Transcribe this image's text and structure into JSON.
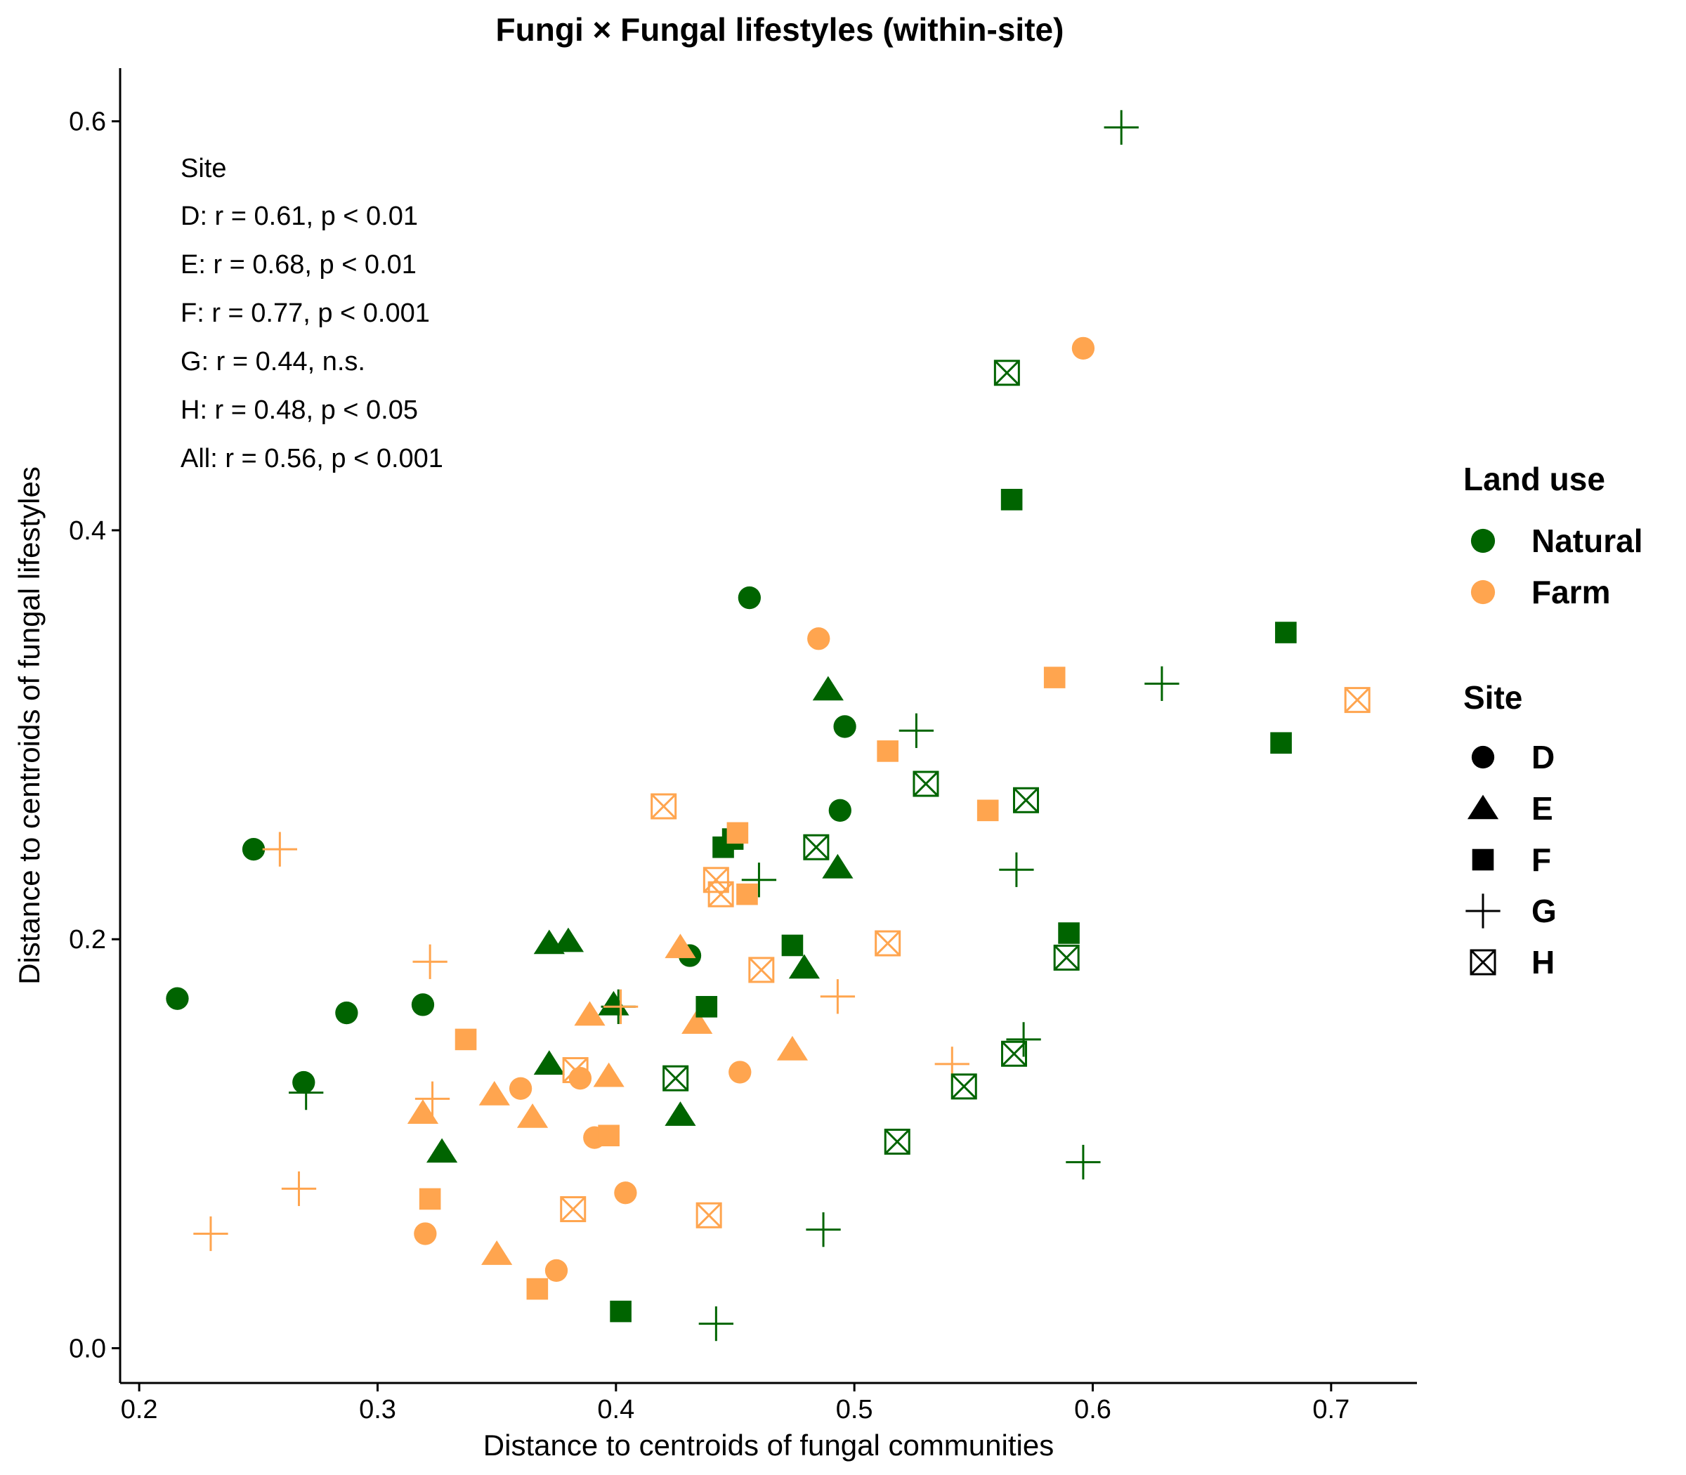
{
  "chart_data": {
    "type": "scatter",
    "title": "Fungi × Fungal lifestyles (within-site)",
    "xlabel": "Distance to centroids of fungal communities",
    "ylabel": "Distance to centroids of fungal lifestyles",
    "xlim": [
      0.192,
      0.736
    ],
    "ylim": [
      -0.017,
      0.626
    ],
    "xticks": [
      0.2,
      0.3,
      0.4,
      0.5,
      0.6,
      0.7
    ],
    "yticks": [
      0.0,
      0.2,
      0.4,
      0.6
    ],
    "xtick_labels": [
      "0.2",
      "0.3",
      "0.4",
      "0.5",
      "0.6",
      "0.7"
    ],
    "ytick_labels": [
      "0.0",
      "0.2",
      "0.4",
      "0.6"
    ],
    "grid": false,
    "annotation": [
      "Site",
      "D: r = 0.61, p < 0.01",
      "E: r = 0.68, p < 0.01",
      "F: r = 0.77, p < 0.001",
      "G: r = 0.44, n.s.",
      "H: r = 0.48, p < 0.05",
      "All: r = 0.56, p < 0.001"
    ],
    "legend_position": "right",
    "legends": {
      "land_use": {
        "title": "Land use",
        "items": [
          {
            "key": "Natural",
            "label": "Natural",
            "color": "#006400"
          },
          {
            "key": "Farm",
            "label": "Farm",
            "color": "#FFA54F"
          }
        ]
      },
      "site": {
        "title": "Site",
        "items": [
          {
            "key": "D",
            "label": "D",
            "shape": "circle"
          },
          {
            "key": "E",
            "label": "E",
            "shape": "triangle"
          },
          {
            "key": "F",
            "label": "F",
            "shape": "square"
          },
          {
            "key": "G",
            "label": "G",
            "shape": "plus"
          },
          {
            "key": "H",
            "label": "H",
            "shape": "boxed-x"
          }
        ]
      }
    },
    "series": [
      {
        "land_use": "Natural",
        "site": "D",
        "points": [
          [
            0.456,
            0.367
          ],
          [
            0.248,
            0.244
          ],
          [
            0.216,
            0.171
          ],
          [
            0.287,
            0.164
          ],
          [
            0.319,
            0.168
          ],
          [
            0.269,
            0.13
          ],
          [
            0.431,
            0.192
          ],
          [
            0.494,
            0.263
          ],
          [
            0.496,
            0.304
          ]
        ]
      },
      {
        "land_use": "Farm",
        "site": "D",
        "points": [
          [
            0.596,
            0.489
          ],
          [
            0.485,
            0.347
          ],
          [
            0.36,
            0.127
          ],
          [
            0.385,
            0.132
          ],
          [
            0.391,
            0.103
          ],
          [
            0.452,
            0.135
          ],
          [
            0.404,
            0.076
          ],
          [
            0.32,
            0.056
          ],
          [
            0.375,
            0.038
          ]
        ]
      },
      {
        "land_use": "Natural",
        "site": "E",
        "points": [
          [
            0.489,
            0.322
          ],
          [
            0.493,
            0.235
          ],
          [
            0.372,
            0.198
          ],
          [
            0.38,
            0.199
          ],
          [
            0.399,
            0.168
          ],
          [
            0.479,
            0.186
          ],
          [
            0.372,
            0.139
          ],
          [
            0.327,
            0.096
          ],
          [
            0.427,
            0.114
          ]
        ]
      },
      {
        "land_use": "Farm",
        "site": "E",
        "points": [
          [
            0.427,
            0.196
          ],
          [
            0.389,
            0.163
          ],
          [
            0.434,
            0.159
          ],
          [
            0.474,
            0.146
          ],
          [
            0.397,
            0.133
          ],
          [
            0.349,
            0.124
          ],
          [
            0.319,
            0.115
          ],
          [
            0.365,
            0.113
          ],
          [
            0.35,
            0.046
          ]
        ]
      },
      {
        "land_use": "Natural",
        "site": "F",
        "points": [
          [
            0.566,
            0.415
          ],
          [
            0.681,
            0.35
          ],
          [
            0.679,
            0.296
          ],
          [
            0.445,
            0.245
          ],
          [
            0.449,
            0.249
          ],
          [
            0.474,
            0.197
          ],
          [
            0.59,
            0.203
          ],
          [
            0.438,
            0.167
          ],
          [
            0.402,
            0.018
          ]
        ]
      },
      {
        "land_use": "Farm",
        "site": "F",
        "points": [
          [
            0.584,
            0.328
          ],
          [
            0.514,
            0.292
          ],
          [
            0.556,
            0.263
          ],
          [
            0.451,
            0.252
          ],
          [
            0.455,
            0.222
          ],
          [
            0.337,
            0.151
          ],
          [
            0.397,
            0.104
          ],
          [
            0.322,
            0.073
          ],
          [
            0.367,
            0.029
          ]
        ]
      },
      {
        "land_use": "Natural",
        "site": "G",
        "points": [
          [
            0.612,
            0.597
          ],
          [
            0.629,
            0.325
          ],
          [
            0.526,
            0.302
          ],
          [
            0.568,
            0.234
          ],
          [
            0.46,
            0.229
          ],
          [
            0.401,
            0.167
          ],
          [
            0.571,
            0.151
          ],
          [
            0.27,
            0.125
          ],
          [
            0.596,
            0.091
          ],
          [
            0.487,
            0.058
          ],
          [
            0.442,
            0.012
          ]
        ]
      },
      {
        "land_use": "Farm",
        "site": "G",
        "points": [
          [
            0.259,
            0.244
          ],
          [
            0.322,
            0.189
          ],
          [
            0.402,
            0.167
          ],
          [
            0.493,
            0.172
          ],
          [
            0.541,
            0.139
          ],
          [
            0.323,
            0.122
          ],
          [
            0.267,
            0.078
          ],
          [
            0.23,
            0.056
          ]
        ]
      },
      {
        "land_use": "Natural",
        "site": "H",
        "points": [
          [
            0.564,
            0.477
          ],
          [
            0.53,
            0.276
          ],
          [
            0.572,
            0.268
          ],
          [
            0.484,
            0.245
          ],
          [
            0.589,
            0.191
          ],
          [
            0.567,
            0.144
          ],
          [
            0.546,
            0.128
          ],
          [
            0.425,
            0.132
          ],
          [
            0.518,
            0.101
          ]
        ]
      },
      {
        "land_use": "Farm",
        "site": "H",
        "points": [
          [
            0.711,
            0.317
          ],
          [
            0.42,
            0.265
          ],
          [
            0.442,
            0.229
          ],
          [
            0.444,
            0.222
          ],
          [
            0.514,
            0.198
          ],
          [
            0.461,
            0.185
          ],
          [
            0.383,
            0.136
          ],
          [
            0.382,
            0.068
          ],
          [
            0.439,
            0.065
          ]
        ]
      }
    ]
  }
}
